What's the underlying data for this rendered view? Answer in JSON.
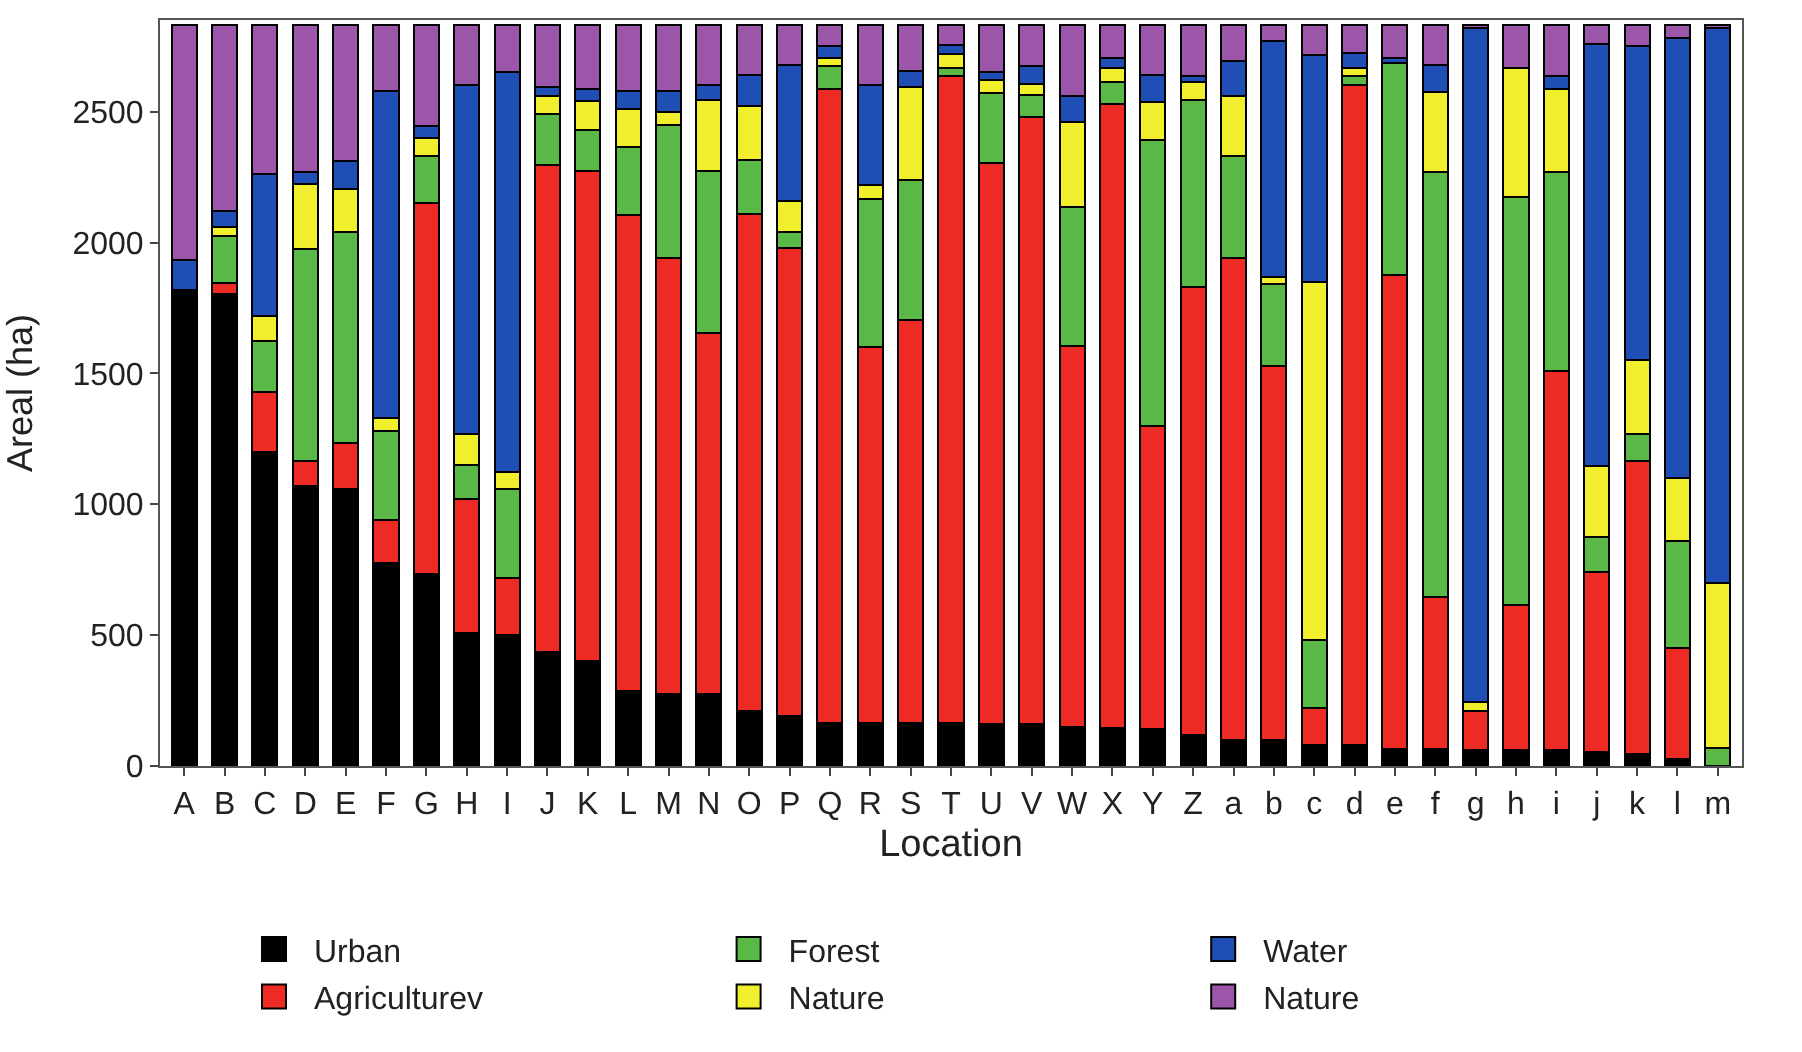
{
  "chart_data": {
    "type": "bar",
    "stacked": true,
    "xlabel": "Location",
    "ylabel": "Areal (ha)",
    "categories": [
      "A",
      "B",
      "C",
      "D",
      "E",
      "F",
      "G",
      "H",
      "I",
      "J",
      "K",
      "L",
      "M",
      "N",
      "O",
      "P",
      "Q",
      "R",
      "S",
      "T",
      "U",
      "V",
      "W",
      "X",
      "Y",
      "Z",
      "a",
      "b",
      "c",
      "d",
      "e",
      "f",
      "g",
      "h",
      "i",
      "j",
      "k",
      "l",
      "m"
    ],
    "ylim": [
      0,
      2850
    ],
    "yticks": [
      0,
      500,
      1000,
      1500,
      2000,
      2500
    ],
    "legend": "bottom",
    "series": [
      {
        "name": "Urban",
        "color": "#000000",
        "values": [
          1820,
          1805,
          1200,
          1070,
          1060,
          775,
          735,
          510,
          500,
          435,
          400,
          285,
          275,
          275,
          210,
          190,
          165,
          165,
          165,
          165,
          160,
          160,
          150,
          145,
          140,
          120,
          100,
          100,
          80,
          80,
          65,
          65,
          60,
          60,
          60,
          55,
          45,
          25,
          null
        ]
      },
      {
        "name": "Agriculturev",
        "color": "#ee2a24",
        "values": [
          null,
          40,
          230,
          95,
          175,
          165,
          1415,
          510,
          220,
          1860,
          1875,
          1820,
          1665,
          1380,
          1900,
          1790,
          2420,
          1435,
          1540,
          2470,
          2145,
          2320,
          1455,
          2385,
          1160,
          1710,
          1840,
          1430,
          140,
          2520,
          1810,
          580,
          150,
          555,
          1450,
          685,
          1120,
          425,
          null
        ]
      },
      {
        "name": "Forest",
        "color": "#5ab946",
        "values": [
          null,
          180,
          195,
          810,
          805,
          340,
          180,
          130,
          340,
          195,
          155,
          260,
          510,
          620,
          205,
          60,
          90,
          565,
          535,
          30,
          265,
          85,
          530,
          85,
          1090,
          715,
          390,
          310,
          260,
          35,
          810,
          1625,
          null,
          1560,
          760,
          135,
          105,
          410,
          70
        ]
      },
      {
        "name": "Nature",
        "color": "#f1ee2e",
        "values": [
          null,
          35,
          95,
          250,
          165,
          50,
          70,
          120,
          65,
          70,
          110,
          145,
          50,
          270,
          205,
          120,
          30,
          55,
          355,
          55,
          50,
          40,
          325,
          50,
          145,
          70,
          230,
          30,
          1370,
          30,
          null,
          305,
          35,
          490,
          315,
          270,
          280,
          240,
          630
        ]
      },
      {
        "name": "Water",
        "color": "#1f4fb4",
        "values": [
          115,
          60,
          540,
          45,
          105,
          1250,
          45,
          1330,
          1525,
          35,
          45,
          70,
          80,
          55,
          120,
          520,
          45,
          380,
          60,
          35,
          30,
          70,
          100,
          40,
          105,
          20,
          135,
          900,
          865,
          60,
          20,
          105,
          2575,
          null,
          50,
          1615,
          1200,
          1680,
          2120
        ]
      },
      {
        "name": "Nature",
        "color": "#9b56a9",
        "values": [
          895,
          710,
          570,
          560,
          520,
          250,
          385,
          230,
          180,
          235,
          245,
          250,
          250,
          230,
          190,
          150,
          80,
          230,
          175,
          75,
          180,
          155,
          270,
          125,
          190,
          195,
          135,
          60,
          115,
          105,
          125,
          150,
          10,
          165,
          195,
          70,
          80,
          50,
          10
        ]
      }
    ]
  }
}
